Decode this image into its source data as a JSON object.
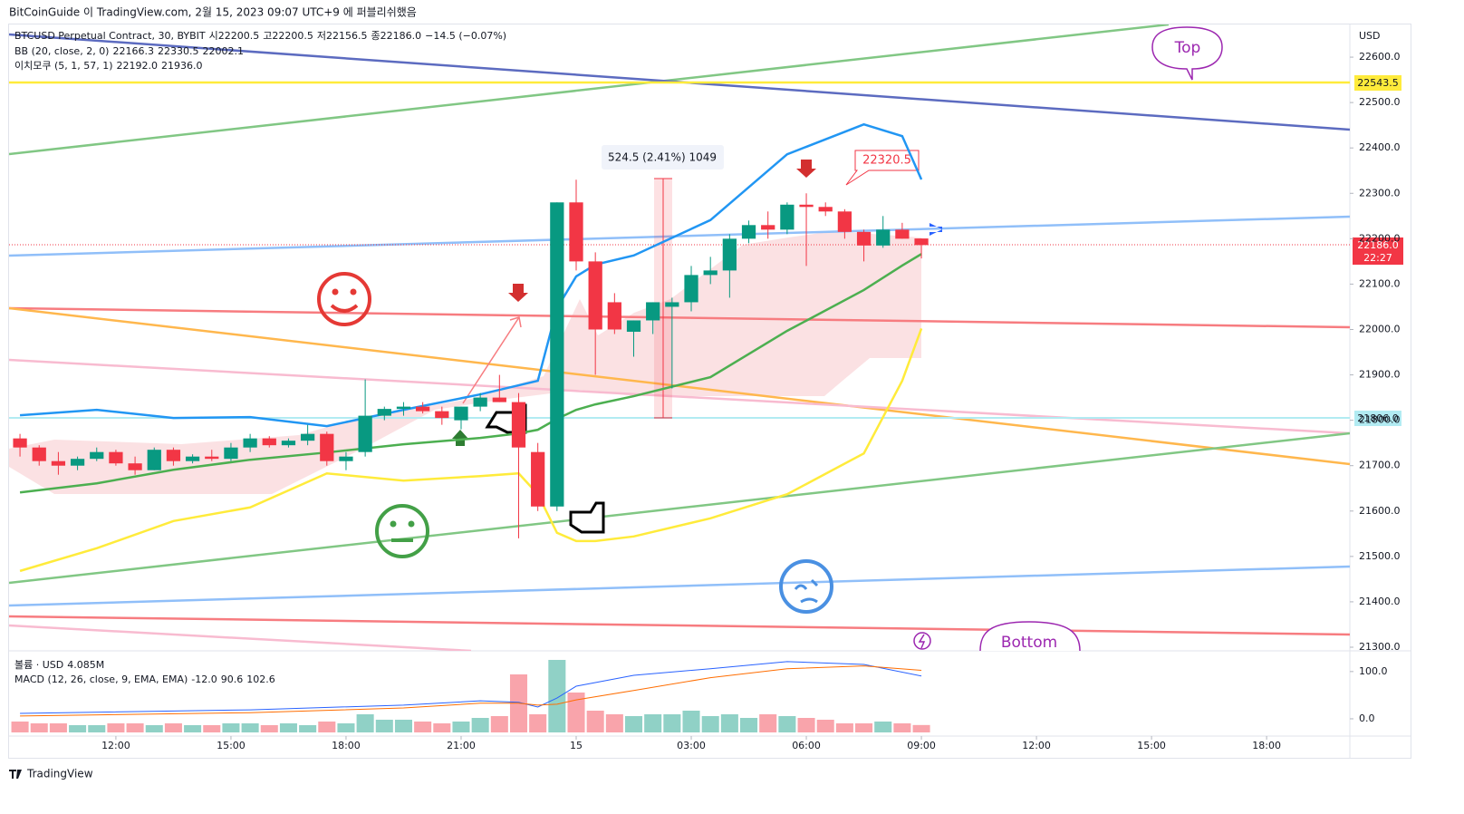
{
  "header": {
    "source": "BitCoinGuide 이 TradingView.com, 2월 15, 2023 09:07 UTC+9 에 퍼블리쉬했음"
  },
  "chart_data": {
    "type": "candlestick",
    "legend": {
      "name": "BTCUSD Perpetual Contract, 30, BYBIT",
      "ohlc": [
        {
          "label": "시",
          "value": "22200.5"
        },
        {
          "label": "고",
          "value": "22200.5"
        },
        {
          "label": "저",
          "value": "22156.5"
        },
        {
          "label": "종",
          "value": "22186.0"
        }
      ],
      "change": "−14.5 (−0.07%)"
    },
    "indicators": [
      {
        "name": "BB (20, close, 2, 0)",
        "values": [
          {
            "text": "22166.3",
            "color": "#43a047"
          },
          {
            "text": "22330.5",
            "color": "#2196f3"
          },
          {
            "text": "22002.1",
            "color": "#fbc02d"
          }
        ]
      },
      {
        "name": "이치모쿠 (5, 1, 57, 1)",
        "values": [
          {
            "text": "22192.0",
            "color": "#f23645"
          },
          {
            "text": "21936.0",
            "color": "#2196f3"
          }
        ]
      }
    ],
    "colors": {
      "up": "#089981",
      "down": "#f23645"
    },
    "open": [
      21760,
      21740,
      21710,
      21700,
      21715,
      21730,
      21705,
      21690,
      21735,
      21710,
      21720,
      21715,
      21740,
      21760,
      21745,
      21755,
      21770,
      21710,
      21730,
      21810,
      21825,
      21830,
      21820,
      21800,
      21830,
      21850,
      21840,
      21730,
      21610,
      22280,
      22150,
      22060,
      21995,
      22020,
      22050,
      22060,
      22120,
      22130,
      22200,
      22230,
      22220,
      22275,
      22270,
      22260,
      22215,
      22185,
      22220,
      22200.5
    ],
    "high": [
      21770,
      21745,
      21730,
      21720,
      21740,
      21735,
      21720,
      21740,
      21740,
      21725,
      21735,
      21750,
      21770,
      21765,
      21760,
      21790,
      21775,
      21730,
      21890,
      21830,
      21840,
      21840,
      21830,
      21830,
      21860,
      21900,
      21860,
      21750,
      22280,
      22330,
      22170,
      22080,
      22020,
      22060,
      22070,
      22140,
      22160,
      22210,
      22240,
      22260,
      22280,
      22300,
      22280,
      22265,
      22220,
      22250,
      22235,
      22200.5
    ],
    "low": [
      21720,
      21700,
      21680,
      21690,
      21710,
      21700,
      21680,
      21690,
      21700,
      21705,
      21710,
      21710,
      21730,
      21740,
      21740,
      21745,
      21700,
      21690,
      21720,
      21800,
      21810,
      21815,
      21790,
      21780,
      21820,
      21840,
      21540,
      21600,
      21600,
      22130,
      21900,
      21990,
      21940,
      21990,
      21870,
      22040,
      22100,
      22070,
      22190,
      22200,
      22210,
      22140,
      22250,
      22200,
      22150,
      22180,
      22200,
      22156.5
    ],
    "close": [
      21740,
      21710,
      21700,
      21715,
      21730,
      21705,
      21690,
      21735,
      21710,
      21720,
      21715,
      21740,
      21760,
      21745,
      21755,
      21770,
      21710,
      21720,
      21810,
      21825,
      21830,
      21820,
      21805,
      21830,
      21850,
      21840,
      21740,
      21610,
      22280,
      22150,
      22000,
      22000,
      22020,
      22060,
      22060,
      22120,
      22130,
      22200,
      22230,
      22220,
      22275,
      22270,
      22260,
      22215,
      22185,
      22220,
      22200,
      22186
    ],
    "xlim": [
      -0.57,
      69.34
    ],
    "ylim": [
      21292,
      22672
    ],
    "yticks": [
      {
        "value": 21300,
        "label": "21300.0"
      },
      {
        "value": 21400,
        "label": "21400.0"
      },
      {
        "value": 21500,
        "label": "21500.0"
      },
      {
        "value": 21600,
        "label": "21600.0"
      },
      {
        "value": 21700,
        "label": "21700.0"
      },
      {
        "value": 21800,
        "label": "21800.0"
      },
      {
        "value": 21900,
        "label": "21900.0"
      },
      {
        "value": 22000,
        "label": "22000.0"
      },
      {
        "value": 22100,
        "label": "22100.0"
      },
      {
        "value": 22200,
        "label": "22200.0"
      },
      {
        "value": 22300,
        "label": "22300.0"
      },
      {
        "value": 22400,
        "label": "22400.0"
      },
      {
        "value": 22500,
        "label": "22500.0"
      },
      {
        "value": 22600,
        "label": "22600.0"
      }
    ],
    "xticks": [
      {
        "value": 5,
        "label": "12:00"
      },
      {
        "value": 11,
        "label": "15:00"
      },
      {
        "value": 17,
        "label": "18:00"
      },
      {
        "value": 23,
        "label": "21:00"
      },
      {
        "value": 29,
        "label": "15"
      },
      {
        "value": 35,
        "label": "03:00"
      },
      {
        "value": 41,
        "label": "06:00"
      },
      {
        "value": 47,
        "label": "09:00"
      },
      {
        "value": 53,
        "label": "12:00"
      },
      {
        "value": 59,
        "label": "15:00"
      },
      {
        "value": 65,
        "label": "18:00"
      }
    ],
    "bb": {
      "x": [
        0,
        4,
        8,
        12,
        16,
        20,
        24,
        26,
        27,
        28,
        29,
        30,
        32,
        36,
        40,
        44,
        46,
        47
      ],
      "series": [
        {
          "color": "#2196f3",
          "values": [
            21811,
            21823,
            21805,
            21807,
            21787,
            21823,
            21857,
            21877,
            21887,
            22047,
            22117,
            22143,
            22163,
            22241,
            22386,
            22452,
            22426,
            22330.5
          ]
        },
        {
          "color": "#4caf50",
          "values": [
            21641,
            21661,
            21691,
            21713,
            21729,
            21747,
            21761,
            21771,
            21779,
            21803,
            21823,
            21835,
            21853,
            21895,
            21997,
            22087,
            22141,
            22166.3
          ]
        },
        {
          "color": "#ffeb3b",
          "values": [
            21468,
            21518,
            21578,
            21608,
            21683,
            21667,
            21677,
            21683,
            21637,
            21552,
            21534,
            21534,
            21544,
            21584,
            21637,
            21727,
            21887,
            22002.1
          ]
        }
      ]
    },
    "currency": "USD",
    "axis_labels": {
      "yellow_line": "22543.5",
      "blue_line": "21806.0",
      "price": "22186.0",
      "countdown": "22:27"
    },
    "annotations": {
      "measure": "524.5 (2.41%) 1049",
      "price_note": "22320.5",
      "top": "Top",
      "bottom": "Bottom"
    },
    "volume": {
      "legend": "볼륨 · USD",
      "legend_value": "4.085M",
      "values": [
        6,
        5,
        5,
        4,
        4,
        5,
        5,
        4,
        5,
        4,
        4,
        5,
        5,
        4,
        5,
        4,
        6,
        5,
        10,
        7,
        7,
        6,
        5,
        6,
        8,
        9,
        32,
        10,
        40,
        22,
        12,
        10,
        9,
        10,
        10,
        12,
        9,
        10,
        8,
        10,
        9,
        8,
        7,
        5,
        5,
        6,
        5,
        4.085
      ]
    },
    "macd": {
      "legend": "MACD (12, 26, close, 9, EMA, EMA)",
      "legend_values": [
        {
          "text": "-12.0",
          "color": "#f23645"
        },
        {
          "text": "90.6",
          "color": "#2962ff"
        },
        {
          "text": "102.6",
          "color": "#ff6d00"
        }
      ],
      "ylim": [
        -36.5,
        140
      ],
      "yticks": [
        {
          "value": 0,
          "label": "0.0"
        },
        {
          "value": 100,
          "label": "100.0"
        }
      ],
      "x": [
        0,
        12,
        20,
        24,
        26,
        27,
        28,
        29,
        32,
        36,
        40,
        44,
        47
      ],
      "series": [
        {
          "color": "#2962ff",
          "values": [
            11.5,
            19,
            29,
            38,
            35,
            25,
            44,
            69,
            92,
            106,
            121,
            115,
            90.6
          ]
        },
        {
          "color": "#ff6d00",
          "values": [
            6,
            13,
            23,
            33,
            33,
            29,
            31,
            40,
            60,
            87,
            106,
            112,
            102.6
          ]
        }
      ]
    },
    "footer": "TradingView"
  }
}
